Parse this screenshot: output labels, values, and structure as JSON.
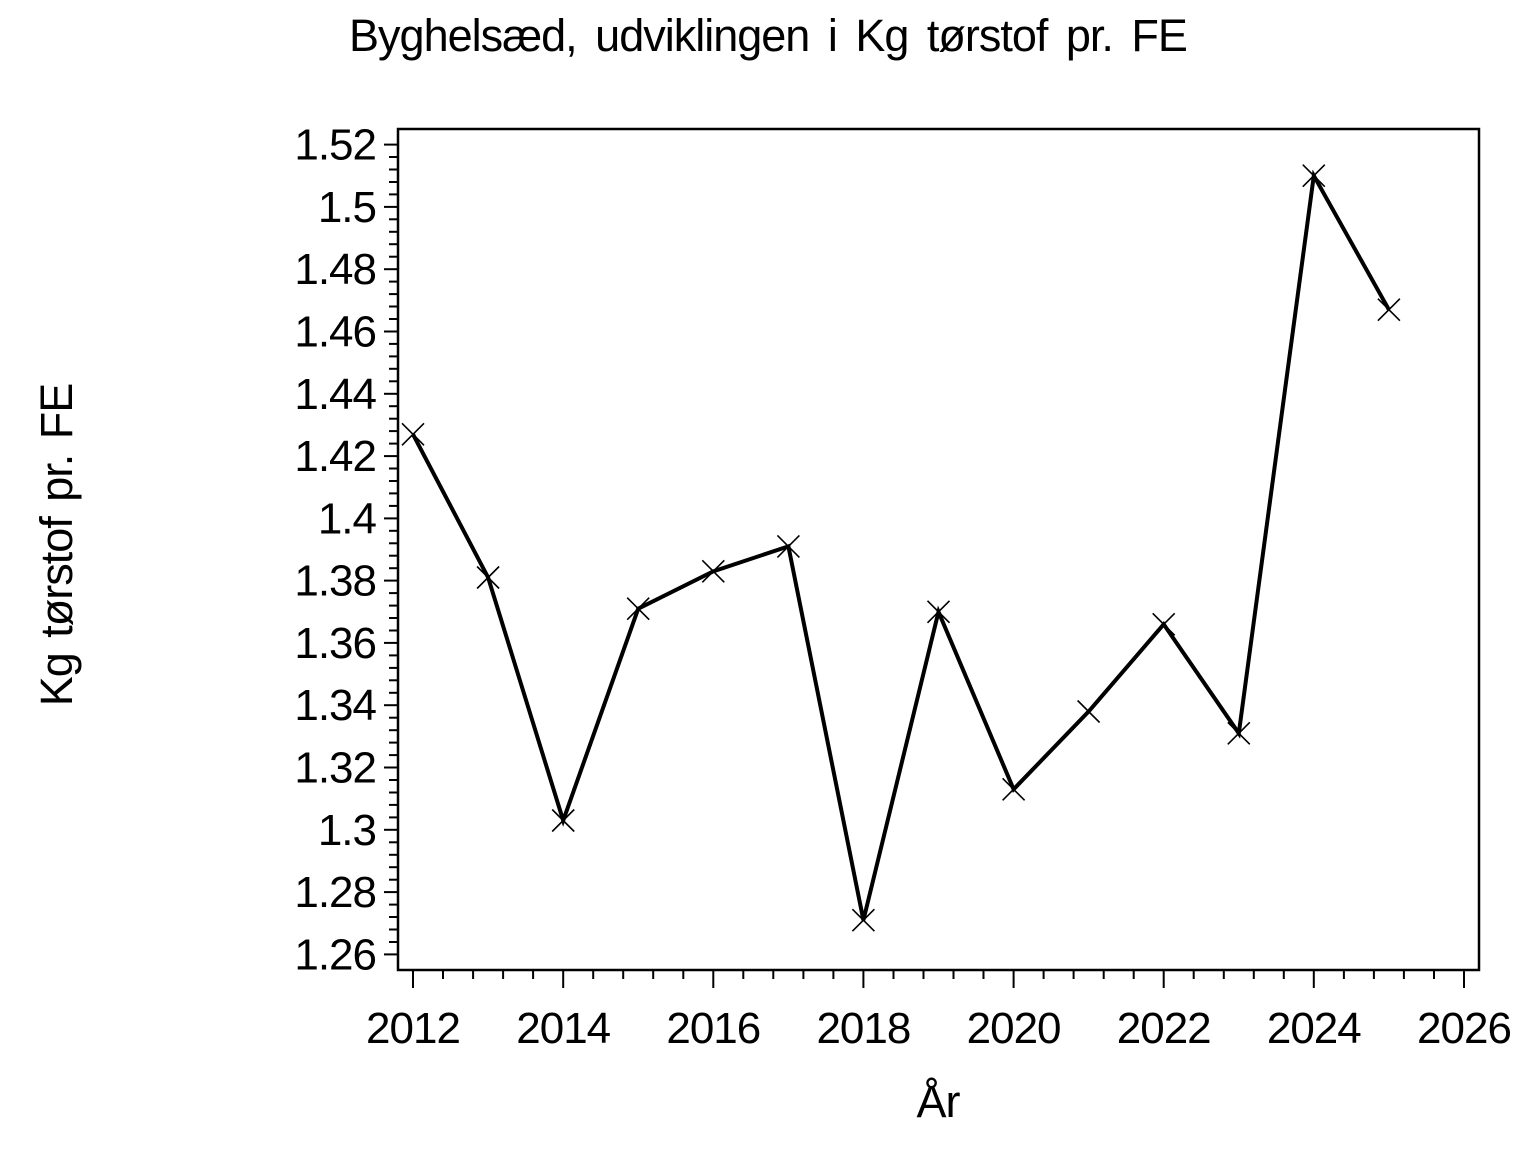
{
  "chart": {
    "title": "Byghelsæd, udviklingen i Kg tørstof pr. FE",
    "x_axis_title": "År",
    "y_axis_title": "Kg tørstof pr. FE"
  },
  "colors": {
    "foreground": "#000000",
    "background": "#ffffff"
  },
  "chart_data": {
    "type": "line",
    "title": "Byghelsæd, udviklingen i Kg tørstof pr. FE",
    "xlabel": "År",
    "ylabel": "Kg tørstof pr. FE",
    "x": [
      2012,
      2013,
      2014,
      2015,
      2016,
      2017,
      2018,
      2019,
      2020,
      2021,
      2022,
      2023,
      2024,
      2025
    ],
    "y": [
      1.427,
      1.381,
      1.303,
      1.371,
      1.383,
      1.391,
      1.271,
      1.37,
      1.313,
      1.338,
      1.366,
      1.331,
      1.51,
      1.467
    ],
    "marker": "x",
    "line_color": "#000000",
    "marker_color": "#000000",
    "background": "#ffffff",
    "grid": false,
    "legend": false,
    "xlim": [
      2011.8,
      2026.2
    ],
    "ylim": [
      1.255,
      1.525
    ],
    "x_major_ticks": [
      2012,
      2014,
      2016,
      2018,
      2020,
      2022,
      2024,
      2026
    ],
    "x_tick_labels": [
      "2012",
      "2014",
      "2016",
      "2018",
      "2020",
      "2022",
      "2024",
      "2026"
    ],
    "x_minor_tick_step": 0.4,
    "y_major_ticks": [
      1.26,
      1.28,
      1.3,
      1.32,
      1.34,
      1.36,
      1.38,
      1.4,
      1.42,
      1.44,
      1.46,
      1.48,
      1.5,
      1.52
    ],
    "y_tick_labels": [
      "1.26",
      "1.28",
      "1.3",
      "1.32",
      "1.34",
      "1.36",
      "1.38",
      "1.4",
      "1.42",
      "1.44",
      "1.46",
      "1.48",
      "1.5",
      "1.52"
    ],
    "y_minor_tick_step": 0.004
  }
}
